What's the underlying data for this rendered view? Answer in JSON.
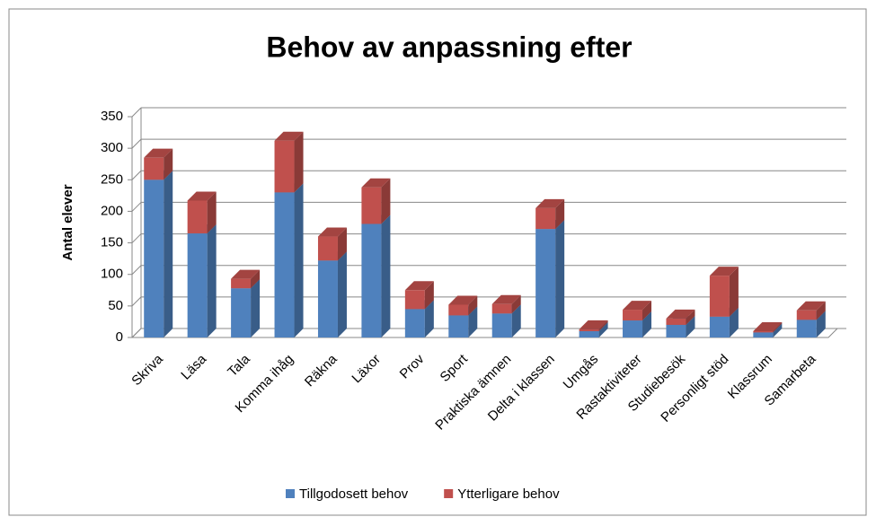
{
  "chart_data": {
    "type": "bar3d_stacked",
    "title": "Behov av anpassning efter",
    "y_label": "Antal elever",
    "categories": [
      "Skriva",
      "Läsa",
      "Tala",
      "Komma ihåg",
      "Räkna",
      "Läxor",
      "Prov",
      "Sport",
      "Praktiska ämnen",
      "Delta i klassen",
      "Umgås",
      "Rastaktiviteter",
      "Studiebesök",
      "Personligt stöd",
      "Klassrum",
      "Samarbeta"
    ],
    "series": [
      {
        "name": "Tillgodosett behov",
        "color": "#4f81bd",
        "values": [
          250,
          165,
          78,
          230,
          122,
          180,
          45,
          35,
          38,
          172,
          10,
          27,
          20,
          33,
          8,
          28
        ]
      },
      {
        "name": "Ytterligare behov",
        "color": "#c0504d",
        "values": [
          35,
          52,
          15,
          82,
          38,
          58,
          30,
          17,
          15,
          33,
          3,
          17,
          10,
          65,
          2,
          15
        ]
      }
    ],
    "ylim": [
      0,
      350
    ],
    "yticks": [
      0,
      50,
      100,
      150,
      200,
      250,
      300,
      350
    ],
    "grid": true,
    "legend": "bottom"
  }
}
